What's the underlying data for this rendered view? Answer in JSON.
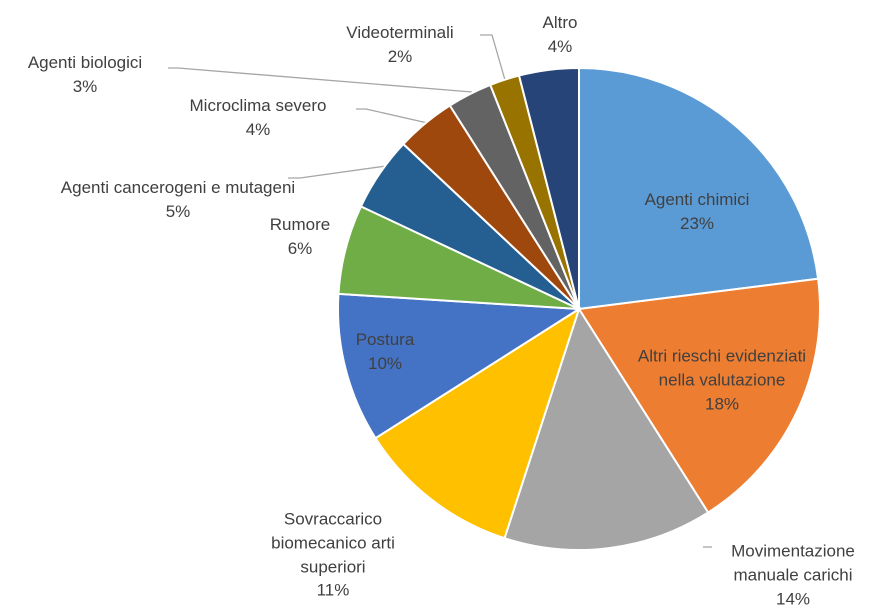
{
  "chart_data": {
    "type": "pie",
    "categories": [
      "Agenti chimici",
      "Altri rieschi evidenziati nella valutazione",
      "Movimentazione manuale carichi",
      "Sovraccarico biomecanico arti superiori",
      "Postura",
      "Rumore",
      "Agenti cancerogeni e mutageni",
      "Microclima severo",
      "Agenti biologici",
      "Videoterminali",
      "Altro"
    ],
    "values": [
      23,
      18,
      14,
      11,
      10,
      6,
      5,
      4,
      3,
      2,
      4
    ],
    "value_labels": [
      "23%",
      "18%",
      "14%",
      "11%",
      "10%",
      "6%",
      "5%",
      "4%",
      "3%",
      "2%",
      "4%"
    ],
    "colors": [
      "#5b9bd5",
      "#ed7d31",
      "#a5a5a5",
      "#ffc000",
      "#4472c4",
      "#70ad47",
      "#255e91",
      "#9e480e",
      "#636363",
      "#997300",
      "#264478"
    ]
  }
}
